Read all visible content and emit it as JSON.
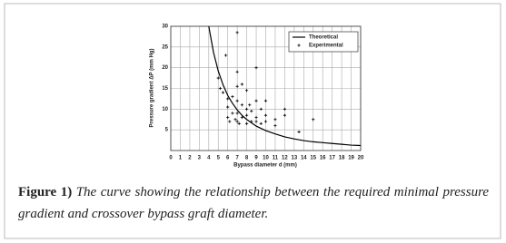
{
  "chart_data": {
    "type": "scatter",
    "x_label": "Bypass diameter d (mm)",
    "y_label": "Pressure gradient ΔP (mm Hg)",
    "xlim": [
      0,
      20
    ],
    "xticks": [
      0,
      1,
      2,
      3,
      4,
      5,
      6,
      7,
      8,
      9,
      10,
      11,
      12,
      13,
      14,
      15,
      16,
      17,
      18,
      19,
      20
    ],
    "ylim": [
      0,
      30
    ],
    "yticks": [
      5,
      10,
      15,
      20,
      25,
      30
    ],
    "grid": true,
    "legend": "top-right",
    "series": [
      {
        "name": "Theoretical",
        "color": "#000000",
        "mark": "line",
        "x": [
          4,
          4.5,
          5,
          5.5,
          6,
          6.5,
          7,
          7.5,
          8,
          9,
          10,
          11,
          12,
          13,
          14,
          15,
          16,
          17,
          18,
          19,
          20
        ],
        "values": [
          30,
          23.7,
          19.2,
          15.9,
          13.3,
          11.4,
          9.8,
          8.5,
          7.5,
          5.9,
          4.8,
          4,
          3.3,
          2.8,
          2.4,
          2.1,
          1.9,
          1.7,
          1.5,
          1.3,
          1.2
        ]
      },
      {
        "name": "Experimental",
        "color": "#000000",
        "mark": "plus",
        "x": [
          5,
          5.2,
          5.5,
          5.8,
          6,
          6,
          6,
          6.2,
          6.5,
          6.5,
          6.8,
          7,
          7,
          7,
          7,
          7,
          7,
          7.2,
          7.5,
          7.5,
          7.5,
          8,
          8,
          8,
          8,
          8.3,
          8.5,
          8.5,
          9,
          9,
          9,
          9,
          9.5,
          9.5,
          10,
          10,
          10,
          11,
          11,
          12,
          12,
          13.5,
          15
        ],
        "values": [
          17.5,
          15,
          14,
          23,
          12.5,
          10.5,
          8,
          7,
          13,
          9,
          7.5,
          28.5,
          19,
          15.5,
          12,
          9,
          7,
          6.5,
          16,
          11,
          8,
          14.5,
          10,
          8.5,
          6.5,
          11,
          9.5,
          7,
          20,
          12,
          8,
          7,
          10,
          6.5,
          12,
          8.5,
          7,
          7.5,
          6,
          10,
          8.5,
          4.5,
          7.5
        ]
      }
    ]
  },
  "caption": {
    "label": "Figure 1)",
    "text": "The curve showing the relationship between the required minimal pressure gradient and crossover bypass graft diameter."
  }
}
